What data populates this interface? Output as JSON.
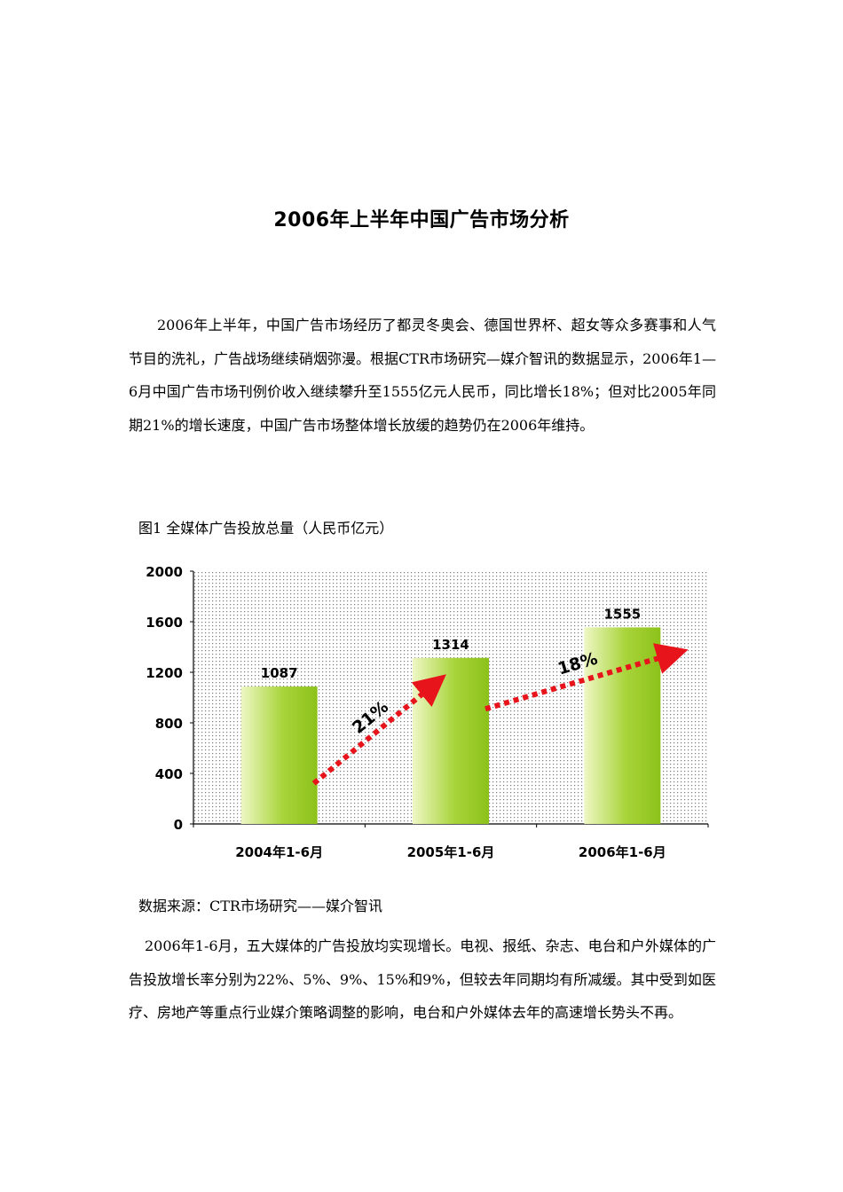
{
  "document": {
    "title": "2006年上半年中国广告市场分析",
    "paragraph1": "2006年上半年，中国广告市场经历了都灵冬奥会、德国世界杯、超女等众多赛事和人气节目的洗礼，广告战场继续硝烟弥漫。根据CTR市场研究—媒介智讯的数据显示，2006年1—6月中国广告市场刊例价收入继续攀升至1555亿元人民币，同比增长18%；但对比2005年同期21%的增长速度，中国广告市场整体增长放缓的趋势仍在2006年维持。",
    "figure_caption": "图1 全媒体广告投放总量（人民币亿元）",
    "source_caption": "数据来源：CTR市场研究——媒介智讯",
    "paragraph2": "2006年1-6月，五大媒体的广告投放均实现增长。电视、报纸、杂志、电台和户外媒体的广告投放增长率分别为22%、5%、9%、15%和9%，但较去年同期均有所减缓。其中受到如医疗、房地产等重点行业媒介策略调整的影响，电台和户外媒体去年的高速增长势头不再。"
  },
  "chart_data": {
    "type": "bar",
    "categories": [
      "2004年1-6月",
      "2005年1-6月",
      "2006年1-6月"
    ],
    "values": [
      1087,
      1314,
      1555
    ],
    "yticks": [
      0,
      400,
      800,
      1200,
      1600,
      2000
    ],
    "ylim": [
      0,
      2000
    ],
    "growth_annotations": [
      {
        "label": "21%",
        "from": "2004年1-6月",
        "to": "2005年1-6月"
      },
      {
        "label": "18%",
        "from": "2005年1-6月",
        "to": "2006年1-6月"
      }
    ],
    "colors": {
      "bar_light": "#eef7c4",
      "bar_dark": "#8cc11a",
      "arrow": "#e8141b",
      "dots": "#7a7a7a"
    },
    "grid": false,
    "legend": "none",
    "title": "",
    "xlabel": "",
    "ylabel": ""
  }
}
